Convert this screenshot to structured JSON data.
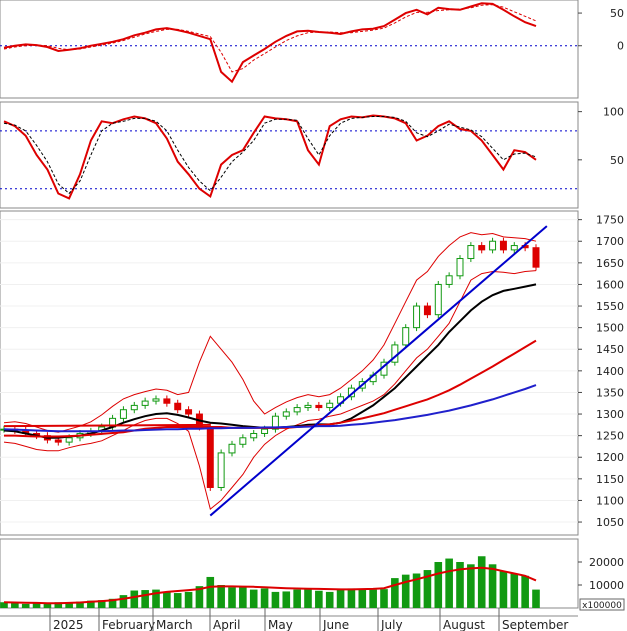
{
  "chart_data": {
    "type": "line",
    "panels": [
      {
        "id": "macd",
        "type": "line",
        "yticks": [
          0,
          50
        ],
        "reference_lines": [
          0
        ],
        "series": [
          {
            "role": "main",
            "color": "#dd0000",
            "values": [
              -3,
              0,
              2,
              1,
              -2,
              -8,
              -6,
              -4,
              0,
              3,
              6,
              10,
              16,
              20,
              25,
              27,
              24,
              20,
              15,
              10,
              -40,
              -55,
              -25,
              -15,
              -5,
              6,
              15,
              22,
              23,
              21,
              20,
              18,
              22,
              25,
              26,
              30,
              40,
              50,
              55,
              48,
              58,
              56,
              55,
              60,
              65,
              64,
              55,
              45,
              36,
              30
            ]
          },
          {
            "role": "signal",
            "color": "#dd0000",
            "dashed": true,
            "values": [
              -5,
              -2,
              0,
              1,
              0,
              -4,
              -6,
              -5,
              -2,
              1,
              4,
              8,
              13,
              18,
              22,
              25,
              25,
              22,
              18,
              14,
              -10,
              -40,
              -35,
              -22,
              -12,
              -2,
              8,
              15,
              20,
              21,
              21,
              20,
              20,
              22,
              24,
              27,
              35,
              44,
              51,
              51,
              54,
              55,
              56,
              58,
              62,
              63,
              59,
              52,
              45,
              38
            ]
          }
        ]
      },
      {
        "id": "stochastic",
        "type": "line",
        "yticks": [
          50,
          100
        ],
        "reference_lines": [
          20,
          80
        ],
        "series": [
          {
            "role": "main",
            "color": "#dd0000",
            "values": [
              90,
              85,
              75,
              55,
              40,
              15,
              10,
              35,
              70,
              90,
              88,
              92,
              95,
              93,
              88,
              72,
              48,
              35,
              20,
              12,
              45,
              55,
              60,
              78,
              95,
              93,
              92,
              90,
              60,
              45,
              85,
              92,
              95,
              94,
              96,
              95,
              93,
              88,
              70,
              75,
              85,
              90,
              82,
              80,
              70,
              55,
              40,
              60,
              58,
              50
            ]
          },
          {
            "role": "signal",
            "color": "#000000",
            "dashed": true,
            "values": [
              88,
              86,
              80,
              65,
              48,
              25,
              15,
              28,
              55,
              80,
              88,
              90,
              93,
              93,
              90,
              80,
              60,
              42,
              28,
              18,
              32,
              48,
              58,
              70,
              88,
              92,
              92,
              91,
              72,
              55,
              75,
              88,
              93,
              94,
              95,
              95,
              94,
              90,
              78,
              74,
              80,
              87,
              84,
              81,
              74,
              62,
              50,
              56,
              57,
              53
            ]
          }
        ]
      },
      {
        "id": "price",
        "type": "candlestick",
        "yticks": [
          1050,
          1100,
          1150,
          1200,
          1250,
          1300,
          1350,
          1400,
          1450,
          1500,
          1550,
          1600,
          1650,
          1700,
          1750
        ],
        "ylim": [
          1020,
          1770
        ],
        "closes": [
          1265,
          1262,
          1255,
          1250,
          1240,
          1235,
          1245,
          1255,
          1260,
          1270,
          1290,
          1310,
          1320,
          1330,
          1335,
          1325,
          1310,
          1300,
          1270,
          1130,
          1210,
          1230,
          1245,
          1255,
          1265,
          1295,
          1305,
          1315,
          1320,
          1315,
          1325,
          1340,
          1360,
          1375,
          1390,
          1420,
          1460,
          1500,
          1550,
          1530,
          1600,
          1620,
          1660,
          1690,
          1680,
          1700,
          1680,
          1690,
          1685,
          1640
        ],
        "overlays": [
          {
            "name": "bollinger_upper",
            "color": "#dd0000",
            "values": [
              1280,
              1282,
              1278,
              1270,
              1262,
              1258,
              1265,
              1272,
              1282,
              1298,
              1318,
              1335,
              1345,
              1352,
              1358,
              1355,
              1345,
              1350,
              1420,
              1480,
              1450,
              1420,
              1380,
              1330,
              1300,
              1315,
              1328,
              1338,
              1345,
              1340,
              1345,
              1360,
              1380,
              1400,
              1425,
              1460,
              1510,
              1560,
              1610,
              1630,
              1665,
              1690,
              1710,
              1720,
              1715,
              1718,
              1710,
              1708,
              1706,
              1700
            ]
          },
          {
            "name": "bollinger_lower",
            "color": "#dd0000",
            "values": [
              1235,
              1232,
              1225,
              1218,
              1215,
              1215,
              1222,
              1228,
              1232,
              1238,
              1250,
              1262,
              1275,
              1285,
              1290,
              1290,
              1278,
              1260,
              1180,
              1080,
              1100,
              1130,
              1160,
              1200,
              1230,
              1250,
              1265,
              1275,
              1285,
              1288,
              1295,
              1300,
              1310,
              1320,
              1330,
              1345,
              1370,
              1400,
              1430,
              1450,
              1480,
              1510,
              1560,
              1610,
              1625,
              1630,
              1628,
              1625,
              1630,
              1632
            ]
          },
          {
            "name": "ma_short",
            "color": "#000000",
            "values": [
              1262,
              1260,
              1255,
              1250,
              1245,
              1245,
              1248,
              1250,
              1255,
              1262,
              1270,
              1280,
              1288,
              1295,
              1300,
              1302,
              1298,
              1292,
              1285,
              1280,
              1278,
              1275,
              1272,
              1270,
              1268,
              1268,
              1270,
              1272,
              1275,
              1276,
              1276,
              1280,
              1290,
              1305,
              1320,
              1340,
              1360,
              1385,
              1410,
              1435,
              1460,
              1490,
              1515,
              1540,
              1560,
              1575,
              1585,
              1590,
              1595,
              1600
            ]
          },
          {
            "name": "ma_medium",
            "color": "#dd0000",
            "values": [
              1250,
              1250,
              1249,
              1248,
              1248,
              1248,
              1249,
              1250,
              1252,
              1254,
              1256,
              1258,
              1262,
              1266,
              1268,
              1270,
              1270,
              1270,
              1270,
              1270,
              1270,
              1268,
              1268,
              1268,
              1268,
              1268,
              1268,
              1270,
              1272,
              1274,
              1276,
              1280,
              1285,
              1290,
              1296,
              1302,
              1310,
              1318,
              1326,
              1334,
              1344,
              1355,
              1368,
              1382,
              1396,
              1410,
              1425,
              1440,
              1455,
              1470
            ]
          },
          {
            "name": "ma_long",
            "color": "#2020cc",
            "values": [
              1265,
              1264,
              1263,
              1262,
              1261,
              1260,
              1260,
              1260,
              1260,
              1260,
              1261,
              1262,
              1262,
              1263,
              1264,
              1265,
              1265,
              1266,
              1266,
              1267,
              1267,
              1268,
              1268,
              1268,
              1269,
              1269,
              1270,
              1270,
              1271,
              1272,
              1272,
              1273,
              1275,
              1277,
              1280,
              1283,
              1286,
              1290,
              1294,
              1298,
              1303,
              1308,
              1314,
              1320,
              1327,
              1334,
              1342,
              1350,
              1358,
              1367
            ]
          }
        ],
        "trendlines": [
          {
            "color": "#0000cc",
            "from": [
              19,
              1065
            ],
            "to": [
              50,
              1735
            ]
          },
          {
            "color": "#dd0000",
            "from": [
              0,
              1272
            ],
            "to": [
              19,
              1275
            ]
          }
        ]
      },
      {
        "id": "volume",
        "type": "bar",
        "yticks": [
          10000,
          20000
        ],
        "unit_label": "x100000",
        "ylim": [
          0,
          30000
        ],
        "values": [
          2500,
          2200,
          1800,
          2000,
          1800,
          2500,
          2200,
          2800,
          3200,
          3400,
          4000,
          5600,
          7600,
          7800,
          8000,
          7000,
          6500,
          7000,
          9500,
          13500,
          10000,
          9000,
          9200,
          8000,
          8500,
          7000,
          7200,
          8000,
          8500,
          7500,
          7000,
          8000,
          8500,
          8000,
          8000,
          8200,
          13000,
          14500,
          15000,
          16500,
          20000,
          21500,
          20000,
          19000,
          22500,
          19000,
          16000,
          15000,
          14000,
          8000
        ],
        "average": [
          2500,
          2400,
          2300,
          2200,
          2100,
          2100,
          2200,
          2400,
          2700,
          3000,
          3400,
          4000,
          4800,
          5600,
          6400,
          7000,
          7400,
          7800,
          8200,
          9200,
          9400,
          9400,
          9300,
          9200,
          9000,
          8800,
          8600,
          8500,
          8400,
          8300,
          8200,
          8100,
          8100,
          8200,
          8300,
          8600,
          10000,
          11300,
          12500,
          13700,
          15000,
          16000,
          16800,
          17200,
          17500,
          17000,
          16000,
          15000,
          14000,
          12000
        ]
      }
    ],
    "x_labels": [
      "2025",
      "February",
      "March",
      "April",
      "May",
      "June",
      "July",
      "August",
      "September"
    ]
  }
}
